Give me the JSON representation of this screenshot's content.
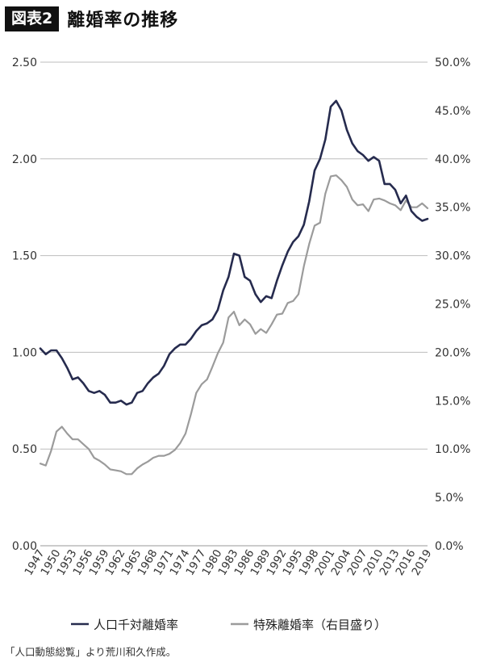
{
  "header": {
    "figure_label": "図表2",
    "title": "離婚率の推移"
  },
  "source_note": "「人口動態総覧」より荒川和久作成。",
  "chart_data": {
    "type": "line",
    "years": [
      1947,
      1948,
      1949,
      1950,
      1951,
      1952,
      1953,
      1954,
      1955,
      1956,
      1957,
      1958,
      1959,
      1960,
      1961,
      1962,
      1963,
      1964,
      1965,
      1966,
      1967,
      1968,
      1969,
      1970,
      1971,
      1972,
      1973,
      1974,
      1975,
      1976,
      1977,
      1978,
      1979,
      1980,
      1981,
      1982,
      1983,
      1984,
      1985,
      1986,
      1987,
      1988,
      1989,
      1990,
      1991,
      1992,
      1993,
      1994,
      1995,
      1996,
      1997,
      1998,
      1999,
      2000,
      2001,
      2002,
      2003,
      2004,
      2005,
      2006,
      2007,
      2008,
      2009,
      2010,
      2011,
      2012,
      2013,
      2014,
      2015,
      2016,
      2017,
      2018,
      2019
    ],
    "x_tick_labels": [
      "1947",
      "1950",
      "1953",
      "1956",
      "1959",
      "1962",
      "1965",
      "1968",
      "1971",
      "1974",
      "1977",
      "1980",
      "1983",
      "1986",
      "1989",
      "1992",
      "1995",
      "1998",
      "2001",
      "2004",
      "2007",
      "2010",
      "2013",
      "2016",
      "2019"
    ],
    "y_left": {
      "min": 0,
      "max": 2.5,
      "tick_labels": [
        "0.00",
        "0.50",
        "1.00",
        "1.50",
        "2.00",
        "2.50"
      ]
    },
    "y_right": {
      "min": 0,
      "max": 50,
      "tick_labels": [
        "0.0%",
        "5.0%",
        "10.0%",
        "15.0%",
        "20.0%",
        "25.0%",
        "30.0%",
        "35.0%",
        "40.0%",
        "45.0%",
        "50.0%"
      ]
    },
    "grid": "horizontal",
    "legend_position": "bottom",
    "series": [
      {
        "name": "人口千対離婚率",
        "axis": "left",
        "color": "#262b4e",
        "values": [
          1.02,
          0.99,
          1.01,
          1.01,
          0.97,
          0.92,
          0.86,
          0.87,
          0.84,
          0.8,
          0.79,
          0.8,
          0.78,
          0.74,
          0.74,
          0.75,
          0.73,
          0.74,
          0.79,
          0.8,
          0.84,
          0.87,
          0.89,
          0.93,
          0.99,
          1.02,
          1.04,
          1.04,
          1.07,
          1.11,
          1.14,
          1.15,
          1.17,
          1.22,
          1.32,
          1.39,
          1.51,
          1.5,
          1.39,
          1.37,
          1.3,
          1.26,
          1.29,
          1.28,
          1.37,
          1.45,
          1.52,
          1.57,
          1.6,
          1.66,
          1.78,
          1.94,
          2.0,
          2.1,
          2.27,
          2.3,
          2.25,
          2.15,
          2.08,
          2.04,
          2.02,
          1.99,
          2.01,
          1.99,
          1.87,
          1.87,
          1.84,
          1.77,
          1.81,
          1.73,
          1.7,
          1.68,
          1.69
        ]
      },
      {
        "name": "特殊離婚率（右目盛り）",
        "axis": "right",
        "color": "#9b9b9b",
        "values": [
          8.5,
          8.3,
          9.8,
          11.8,
          12.3,
          11.6,
          11.0,
          11.0,
          10.5,
          10.0,
          9.1,
          8.8,
          8.4,
          7.9,
          7.8,
          7.7,
          7.4,
          7.4,
          8.0,
          8.4,
          8.7,
          9.1,
          9.3,
          9.3,
          9.5,
          9.9,
          10.6,
          11.6,
          13.6,
          15.8,
          16.7,
          17.2,
          18.5,
          19.9,
          21.0,
          23.6,
          24.2,
          22.8,
          23.4,
          22.9,
          21.9,
          22.4,
          22.0,
          22.9,
          23.9,
          24.0,
          25.1,
          25.3,
          26.0,
          28.9,
          31.2,
          33.1,
          33.4,
          36.4,
          38.2,
          38.3,
          37.8,
          37.1,
          35.8,
          35.2,
          35.3,
          34.6,
          35.8,
          35.9,
          35.7,
          35.4,
          35.2,
          34.7,
          35.7,
          35.0,
          35.0,
          35.4,
          34.9
        ]
      }
    ]
  }
}
